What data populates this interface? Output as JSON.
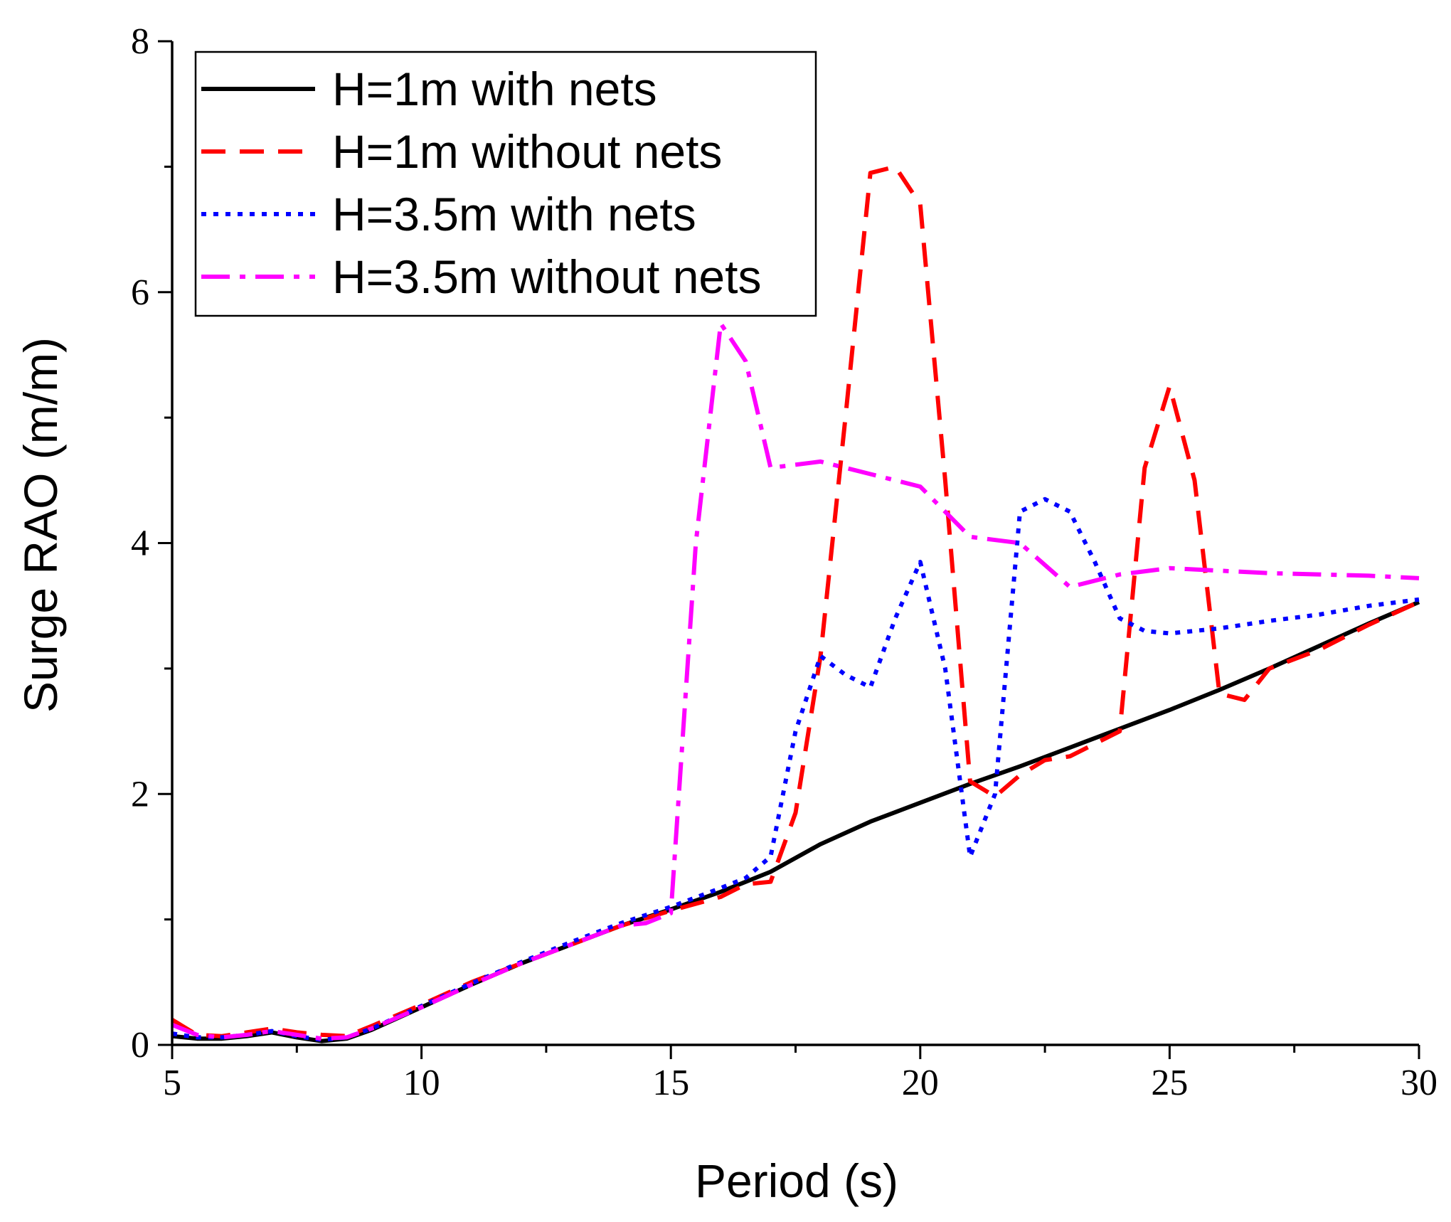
{
  "chart_data": {
    "type": "line",
    "title": "",
    "xlabel": "Period (s)",
    "ylabel": "Surge RAO (m/m)",
    "xlim": [
      5,
      30
    ],
    "ylim": [
      0,
      8
    ],
    "x_major_ticks": [
      5,
      10,
      15,
      20,
      25,
      30
    ],
    "x_minor_ticks": [
      7.5,
      12.5,
      17.5,
      22.5,
      27.5
    ],
    "y_major_ticks": [
      0,
      2,
      4,
      6,
      8
    ],
    "y_minor_ticks": [
      1,
      3,
      5,
      7
    ],
    "x_tick_labels": [
      "5",
      "10",
      "15",
      "20",
      "25",
      "30"
    ],
    "y_tick_labels": [
      "0",
      "2",
      "4",
      "6",
      "8"
    ],
    "legend_position": "top-left",
    "series": [
      {
        "name": "H=1m with nets",
        "color": "#000000",
        "dash": "solid",
        "x": [
          5,
          5.5,
          6,
          6.5,
          7,
          7.5,
          8,
          8.5,
          9,
          10,
          11,
          12,
          13,
          14,
          15,
          16,
          17,
          18,
          19,
          20,
          21,
          22,
          23,
          24,
          25,
          26,
          27,
          28,
          29,
          30
        ],
        "y": [
          0.07,
          0.05,
          0.05,
          0.07,
          0.1,
          0.06,
          0.03,
          0.05,
          0.12,
          0.3,
          0.48,
          0.65,
          0.8,
          0.95,
          1.08,
          1.22,
          1.38,
          1.6,
          1.78,
          1.93,
          2.08,
          2.22,
          2.37,
          2.52,
          2.67,
          2.83,
          3.0,
          3.18,
          3.36,
          3.53
        ]
      },
      {
        "name": "H=1m without nets",
        "color": "#ff0000",
        "dash": "dashed",
        "x": [
          5,
          5.5,
          6,
          6.5,
          7,
          7.5,
          8,
          8.5,
          9,
          10,
          11,
          12,
          13,
          14,
          15,
          16,
          16.5,
          17,
          17.5,
          18,
          18.5,
          19,
          19.5,
          20,
          20.5,
          21,
          21.5,
          22,
          22.5,
          23,
          23.5,
          24,
          24.5,
          25,
          25.5,
          26,
          26.5,
          27,
          28,
          29,
          30
        ],
        "y": [
          0.2,
          0.08,
          0.07,
          0.1,
          0.13,
          0.1,
          0.08,
          0.07,
          0.15,
          0.32,
          0.5,
          0.65,
          0.8,
          0.95,
          1.07,
          1.18,
          1.28,
          1.3,
          1.85,
          3.1,
          5.0,
          6.95,
          7.0,
          6.7,
          4.5,
          2.1,
          1.98,
          2.15,
          2.27,
          2.3,
          2.4,
          2.5,
          4.6,
          5.25,
          4.5,
          2.8,
          2.75,
          3.0,
          3.15,
          3.35,
          3.53
        ]
      },
      {
        "name": "H=3.5m with nets",
        "color": "#0000ff",
        "dash": "dotted",
        "x": [
          5,
          5.5,
          6,
          6.5,
          7,
          7.5,
          8,
          8.5,
          9,
          10,
          11,
          12,
          13,
          14,
          15,
          16,
          16.5,
          17,
          17.5,
          18,
          18.5,
          19,
          19.5,
          20,
          20.5,
          21,
          21.5,
          22,
          22.5,
          23,
          23.5,
          24,
          24.5,
          25,
          25.5,
          26,
          27,
          28,
          29,
          30
        ],
        "y": [
          0.09,
          0.06,
          0.06,
          0.08,
          0.11,
          0.07,
          0.04,
          0.06,
          0.13,
          0.31,
          0.49,
          0.66,
          0.82,
          0.97,
          1.1,
          1.25,
          1.33,
          1.5,
          2.5,
          3.1,
          2.95,
          2.85,
          3.4,
          3.85,
          3.0,
          1.5,
          2.0,
          4.25,
          4.35,
          4.25,
          3.85,
          3.4,
          3.3,
          3.28,
          3.3,
          3.32,
          3.38,
          3.43,
          3.5,
          3.55
        ]
      },
      {
        "name": "H=3.5m without nets",
        "color": "#ff00ff",
        "dash": "dashdot",
        "x": [
          5,
          5.5,
          6,
          6.5,
          7,
          7.5,
          8,
          8.5,
          9,
          10,
          11,
          12,
          13,
          14,
          14.5,
          15,
          15.5,
          16,
          16.5,
          17,
          18,
          19,
          20,
          21,
          22,
          23,
          24,
          25,
          26,
          27,
          28,
          29,
          30
        ],
        "y": [
          0.16,
          0.08,
          0.06,
          0.08,
          0.11,
          0.08,
          0.05,
          0.06,
          0.13,
          0.3,
          0.48,
          0.65,
          0.8,
          0.95,
          0.97,
          1.05,
          4.0,
          5.75,
          5.45,
          4.6,
          4.65,
          4.55,
          4.45,
          4.05,
          4.0,
          3.65,
          3.75,
          3.8,
          3.78,
          3.76,
          3.75,
          3.74,
          3.72
        ]
      }
    ]
  }
}
